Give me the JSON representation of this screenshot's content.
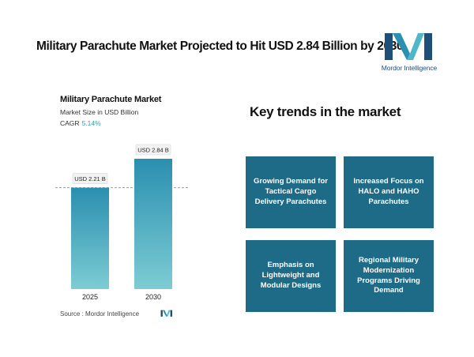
{
  "header": {
    "headline": "Military Parachute Market Projected to Hit USD 2.84 Billion by 2030",
    "logo_text": "Mordor Intelligence",
    "logo_icon": "mordor-m-logo-icon"
  },
  "chart_panel": {
    "title": "Military Parachute Market",
    "subtitle": "Market Size in USD Billion",
    "cagr_label": "CAGR",
    "cagr_value": "5.14%",
    "source": "Source :  Mordor Intelligence"
  },
  "chart_data": {
    "type": "bar",
    "categories": [
      "2025",
      "2030"
    ],
    "values": [
      2.21,
      2.84
    ],
    "data_labels": [
      "USD 2.21 B",
      "USD 2.84 B"
    ],
    "ylabel": "Market Size in USD Billion",
    "ylim": [
      0,
      2.84
    ],
    "reference_line": 2.21,
    "colors": {
      "bar_top": "#2a8fb0",
      "bar_bottom": "#7dccd3",
      "line": "#7aa9b8"
    }
  },
  "trends": {
    "title": "Key trends in the market",
    "cards": [
      "Growing Demand for Tactical Cargo Delivery Parachutes",
      "Increased Focus on HALO and HAHO Parachutes",
      "Emphasis on Lightweight and Modular Designs",
      "Regional Military Modernization Programs Driving Demand"
    ],
    "card_color": "#1e6b87"
  }
}
